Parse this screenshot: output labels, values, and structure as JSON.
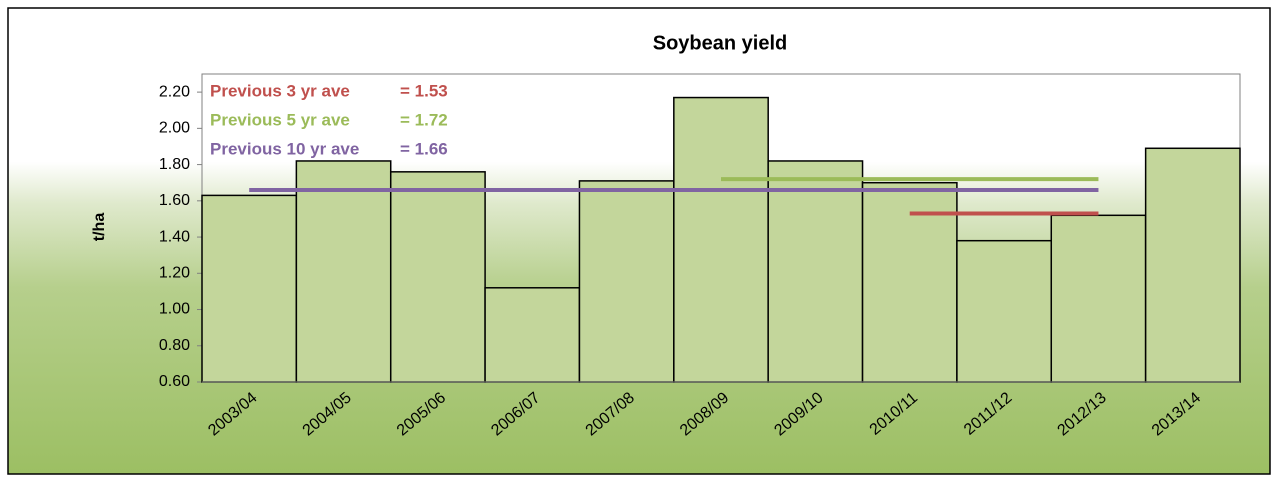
{
  "chart_data": {
    "type": "bar",
    "title": "Soybean yield",
    "y_label": "t/ha",
    "categories": [
      "2003/04",
      "2004/05",
      "2005/06",
      "2006/07",
      "2007/08",
      "2008/09",
      "2009/10",
      "2010/11",
      "2011/12",
      "2012/13",
      "2013/14"
    ],
    "values": [
      1.63,
      1.82,
      1.76,
      1.12,
      1.71,
      2.17,
      1.82,
      1.7,
      1.38,
      1.52,
      1.89
    ],
    "color": "#c3d69b",
    "ylim": [
      0.6,
      2.3
    ],
    "yticks": [
      {
        "value": 0.6,
        "label": "0.60"
      },
      {
        "value": 0.8,
        "label": "0.80"
      },
      {
        "value": 1.0,
        "label": "1.00"
      },
      {
        "value": 1.2,
        "label": "1.20"
      },
      {
        "value": 1.4,
        "label": "1.40"
      },
      {
        "value": 1.6,
        "label": "1.60"
      },
      {
        "value": 1.8,
        "label": "1.80"
      },
      {
        "value": 2.0,
        "label": "2.00"
      },
      {
        "value": 2.2,
        "label": "2.20"
      }
    ],
    "averages": [
      {
        "name": "Previous 3 yr ave",
        "value": 1.53,
        "value_label": "= 1.53",
        "color": "#c0504d",
        "from": "2010/11",
        "to": "2012/13"
      },
      {
        "name": "Previous 5 yr ave",
        "value": 1.72,
        "value_label": "= 1.72",
        "color": "#9bbb59",
        "from": "2008/09",
        "to": "2012/13"
      },
      {
        "name": "Previous 10 yr ave",
        "value": 1.66,
        "value_label": "= 1.66",
        "color": "#8064a2",
        "from": "2003/04",
        "to": "2012/13"
      }
    ]
  }
}
